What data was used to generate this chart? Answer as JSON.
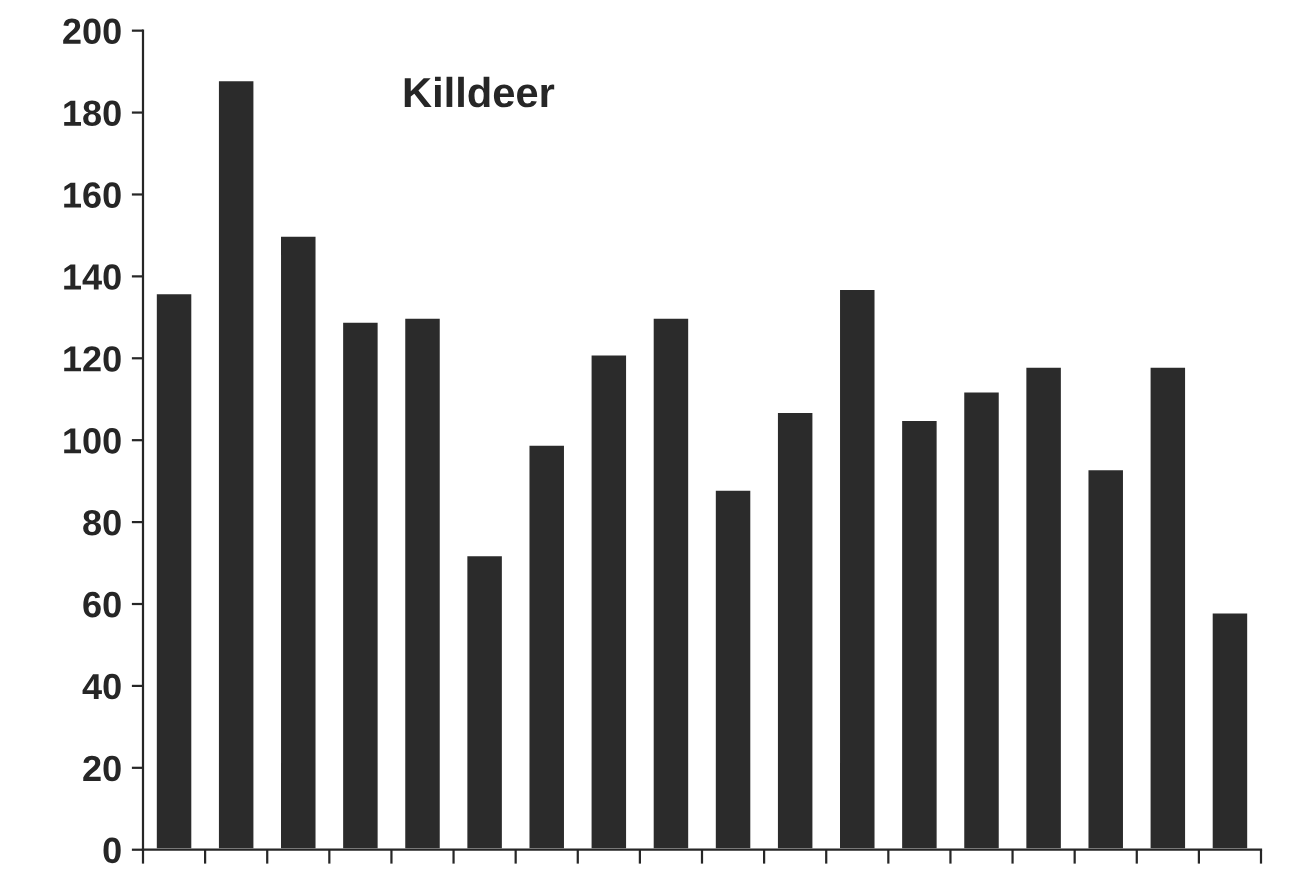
{
  "chart_data": {
    "type": "bar",
    "title": "Killdeer",
    "categories": [
      null,
      null,
      null,
      null,
      null,
      null,
      null,
      null,
      null,
      null,
      null,
      null,
      null,
      null,
      null,
      null,
      null,
      null
    ],
    "values": [
      136,
      188,
      150,
      129,
      130,
      72,
      99,
      121,
      130,
      88,
      107,
      137,
      105,
      112,
      118,
      93,
      118,
      58
    ],
    "color": "#2b2b2b",
    "ylim": [
      0,
      200
    ],
    "yticks": [
      0,
      20,
      40,
      60,
      80,
      100,
      120,
      140,
      160,
      180,
      200
    ],
    "grid": false,
    "legend": false
  }
}
